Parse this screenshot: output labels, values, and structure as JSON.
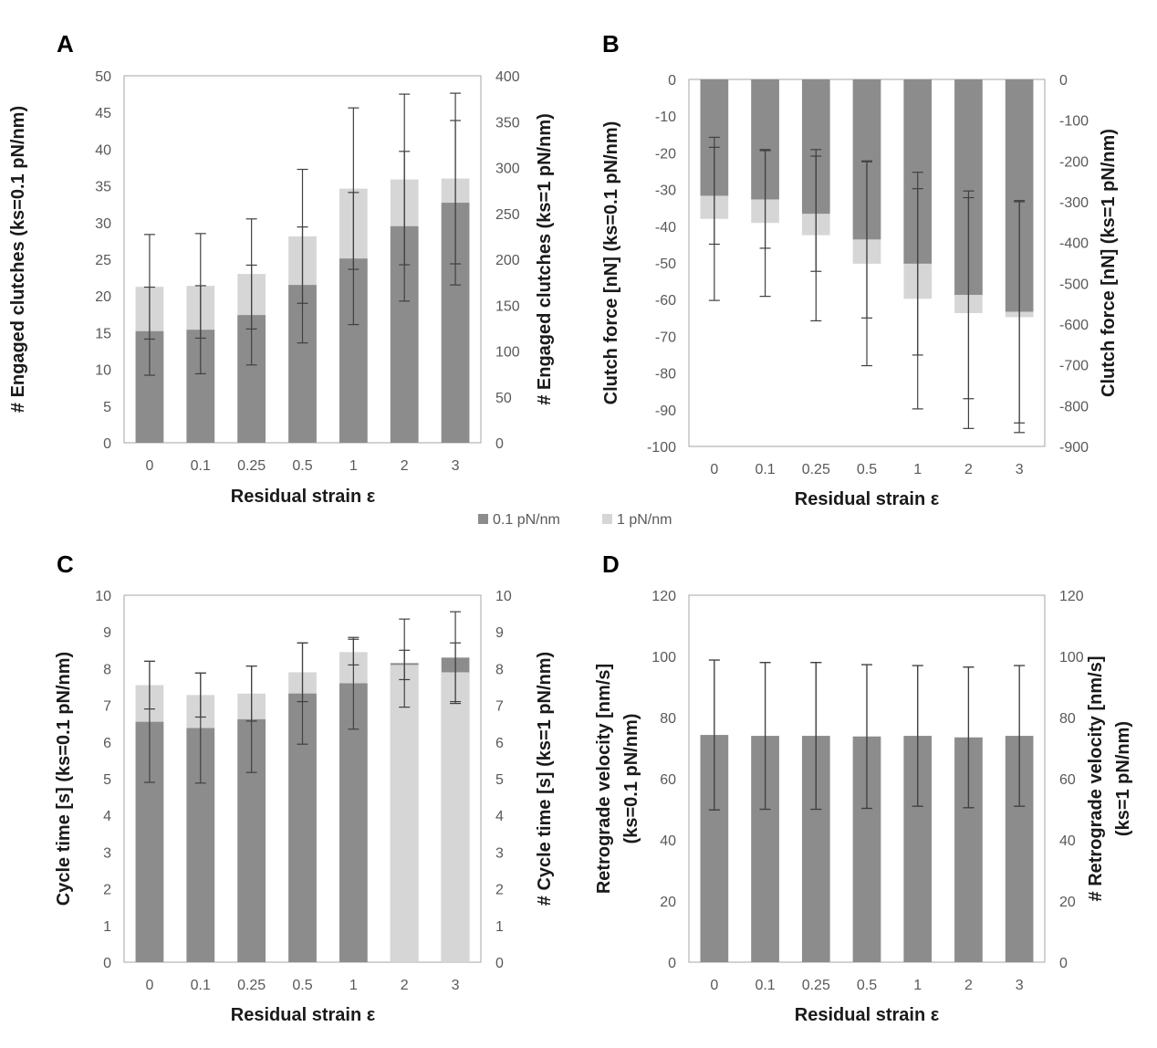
{
  "colors": {
    "dark": "#8c8c8c",
    "light": "#d6d6d6",
    "frame": "#a6a6a6",
    "errorbar": "#404040"
  },
  "legend": [
    {
      "label": "0.1 pN/nm",
      "color": "#8c8c8c"
    },
    {
      "label": "1 pN/nm",
      "color": "#d6d6d6"
    }
  ],
  "chart_data": [
    {
      "panel": "A",
      "type": "bar",
      "categories": [
        "0",
        "0.1",
        "0.25",
        "0.5",
        "1",
        "2",
        "3"
      ],
      "xlabel": "Residual strain ε",
      "ylabel": "# Engaged clutches (ks=0.1 pN/nm)",
      "ylabel2": "# Engaged clutches (ks=1 pN/nm)",
      "ylim": [
        0,
        50
      ],
      "yticks": [
        0,
        5,
        10,
        15,
        20,
        25,
        30,
        35,
        40,
        45,
        50
      ],
      "ylim2": [
        0,
        400
      ],
      "yticks2": [
        0,
        50,
        100,
        150,
        200,
        250,
        300,
        350,
        400
      ],
      "series": [
        {
          "name": "0.1 pN/nm",
          "axis": "left",
          "values": [
            15.2,
            15.4,
            17.4,
            21.5,
            25.1,
            29.5,
            32.7
          ],
          "error": [
            6.0,
            6.0,
            6.8,
            7.9,
            9.0,
            10.2,
            11.2
          ]
        },
        {
          "name": "1 pN/nm",
          "axis": "right",
          "values": [
            170,
            171,
            184,
            225,
            277,
            287,
            288
          ],
          "error": [
            57,
            57,
            60,
            73,
            88,
            93,
            93
          ]
        }
      ]
    },
    {
      "panel": "B",
      "type": "bar",
      "categories": [
        "0",
        "0.1",
        "0.25",
        "0.5",
        "1",
        "2",
        "3"
      ],
      "xlabel": "Residual strain ε",
      "ylabel": "Clutch force [nN] (ks=0.1 pN/nm)",
      "ylabel2": "Clutch force [nN] (ks=1 pN/nm)",
      "ylim": [
        -100,
        0
      ],
      "yticks": [
        0,
        -10,
        -20,
        -30,
        -40,
        -50,
        -60,
        -70,
        -80,
        -90,
        -100
      ],
      "ylim2": [
        -900,
        0
      ],
      "yticks2": [
        0,
        -100,
        -200,
        -300,
        -400,
        -500,
        -600,
        -700,
        -800,
        -900
      ],
      "series": [
        {
          "name": "0.1 pN/nm",
          "axis": "left",
          "values": [
            -31.7,
            -32.7,
            -36.6,
            -43.6,
            -50.2,
            -58.7,
            -63.3
          ],
          "error": [
            13.2,
            13.3,
            15.7,
            21.4,
            24.9,
            28.3,
            30.3
          ]
        },
        {
          "name": "1 pN/nm",
          "axis": "right",
          "values": [
            -342,
            -352,
            -382,
            -452,
            -538,
            -573,
            -583
          ],
          "error": [
            200,
            180,
            210,
            250,
            270,
            283,
            283
          ]
        }
      ]
    },
    {
      "panel": "C",
      "type": "bar",
      "categories": [
        "0",
        "0.1",
        "0.25",
        "0.5",
        "1",
        "2",
        "3"
      ],
      "xlabel": "Residual strain ε",
      "ylabel": "Cycle time [s] (ks=0.1 pN/nm)",
      "ylabel2": "# Cycle time [s] (ks=1 pN/nm)",
      "ylim": [
        0,
        10
      ],
      "yticks": [
        0,
        1,
        2,
        3,
        4,
        5,
        6,
        7,
        8,
        9,
        10
      ],
      "ylim2": [
        0,
        10
      ],
      "yticks2": [
        0,
        1,
        2,
        3,
        4,
        5,
        6,
        7,
        8,
        9,
        10
      ],
      "series": [
        {
          "name": "0.1 pN/nm",
          "axis": "left",
          "values": [
            6.55,
            6.38,
            6.62,
            7.32,
            7.6,
            8.15,
            8.3
          ],
          "error": [
            1.65,
            1.5,
            1.45,
            1.38,
            1.25,
            1.2,
            1.25
          ]
        },
        {
          "name": "1 pN/nm",
          "axis": "right",
          "values": [
            7.55,
            7.28,
            7.32,
            7.9,
            8.45,
            8.1,
            7.9
          ],
          "error": [
            0.65,
            0.6,
            0.75,
            0.8,
            0.35,
            0.4,
            0.8
          ]
        }
      ]
    },
    {
      "panel": "D",
      "type": "bar",
      "categories": [
        "0",
        "0.1",
        "0.25",
        "0.5",
        "1",
        "2",
        "3"
      ],
      "xlabel": "Residual strain ε",
      "ylabel": "Retrograde velocity [nm/s]",
      "ylabel_line2": "(ks=0.1 pN/nm)",
      "ylabel2": "# Retrograde velocity [nm/s]",
      "ylabel2_line2": "(ks=1 pN/nm)",
      "ylim": [
        0,
        120
      ],
      "yticks": [
        0,
        20,
        40,
        60,
        80,
        100,
        120
      ],
      "ylim2": [
        0,
        120
      ],
      "yticks2": [
        0,
        20,
        40,
        60,
        80,
        100,
        120
      ],
      "series": [
        {
          "name": "0.1 pN/nm",
          "axis": "left",
          "values": [
            74.3,
            74.0,
            74.0,
            73.8,
            74.0,
            73.5,
            74.0
          ],
          "error": [
            24.5,
            24.0,
            24.0,
            23.5,
            23.0,
            23.0,
            23.0
          ]
        },
        {
          "name": "1 pN/nm",
          "axis": "right",
          "values": [
            74.3,
            74.0,
            74.0,
            73.8,
            74.0,
            73.5,
            74.0
          ],
          "error": [
            24.5,
            24.0,
            24.0,
            23.5,
            23.0,
            23.0,
            23.0
          ]
        }
      ]
    }
  ]
}
